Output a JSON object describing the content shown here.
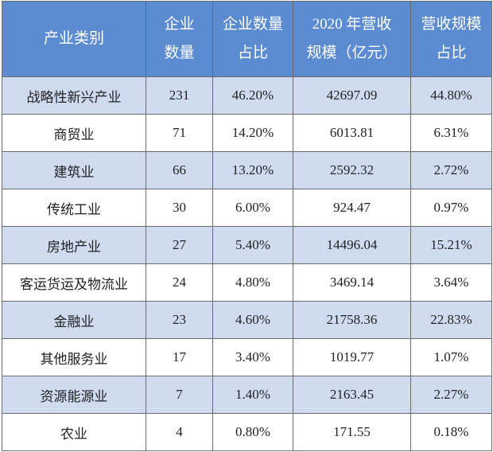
{
  "table": {
    "header": [
      [
        "产业类别"
      ],
      [
        "企业",
        "数量"
      ],
      [
        "企业数量",
        "占比"
      ],
      [
        "2020 年营收",
        "规模（亿元）"
      ],
      [
        "营收规模",
        "占比"
      ]
    ],
    "rows": [
      [
        "战略性新兴产业",
        "231",
        "46.20%",
        "42697.09",
        "44.80%"
      ],
      [
        "商贸业",
        "71",
        "14.20%",
        "6013.81",
        "6.31%"
      ],
      [
        "建筑业",
        "66",
        "13.20%",
        "2592.32",
        "2.72%"
      ],
      [
        "传统工业",
        "30",
        "6.00%",
        "924.47",
        "0.97%"
      ],
      [
        "房地产业",
        "27",
        "5.40%",
        "14496.04",
        "15.21%"
      ],
      [
        "客运货运及物流业",
        "24",
        "4.80%",
        "3469.14",
        "3.64%"
      ],
      [
        "金融业",
        "23",
        "4.60%",
        "21758.36",
        "22.83%"
      ],
      [
        "其他服务业",
        "17",
        "3.40%",
        "1019.77",
        "1.07%"
      ],
      [
        "资源能源业",
        "7",
        "1.40%",
        "2163.45",
        "2.27%"
      ],
      [
        "农业",
        "4",
        "0.80%",
        "171.55",
        "0.18%"
      ]
    ]
  }
}
